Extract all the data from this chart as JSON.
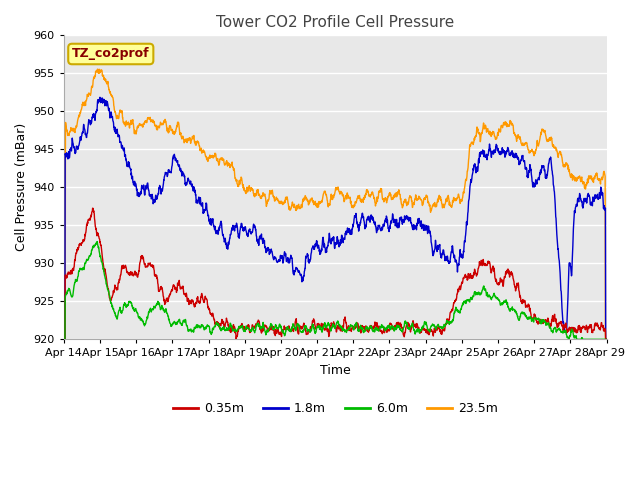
{
  "title": "Tower CO2 Profile Cell Pressure",
  "xlabel": "Time",
  "ylabel": "Cell Pressure (mBar)",
  "ylim": [
    920,
    960
  ],
  "tick_labels": [
    "Apr 14",
    "Apr 15",
    "Apr 16",
    "Apr 17",
    "Apr 18",
    "Apr 19",
    "Apr 20",
    "Apr 21",
    "Apr 22",
    "Apr 23",
    "Apr 24",
    "Apr 25",
    "Apr 26",
    "Apr 27",
    "Apr 28",
    "Apr 29"
  ],
  "series_labels": [
    "0.35m",
    "1.8m",
    "6.0m",
    "23.5m"
  ],
  "series_colors": [
    "#cc0000",
    "#0000cc",
    "#00bb00",
    "#ff9900"
  ],
  "fig_bg_color": "#ffffff",
  "plot_bg_color": "#e8e8e8",
  "grid_color": "#ffffff",
  "annotation_text": "TZ_co2prof",
  "annotation_color": "#880000",
  "annotation_bg": "#ffff99",
  "annotation_edge": "#ccaa00",
  "line_width": 1.0,
  "title_fontsize": 11,
  "tick_fontsize": 8,
  "label_fontsize": 9,
  "legend_fontsize": 9
}
